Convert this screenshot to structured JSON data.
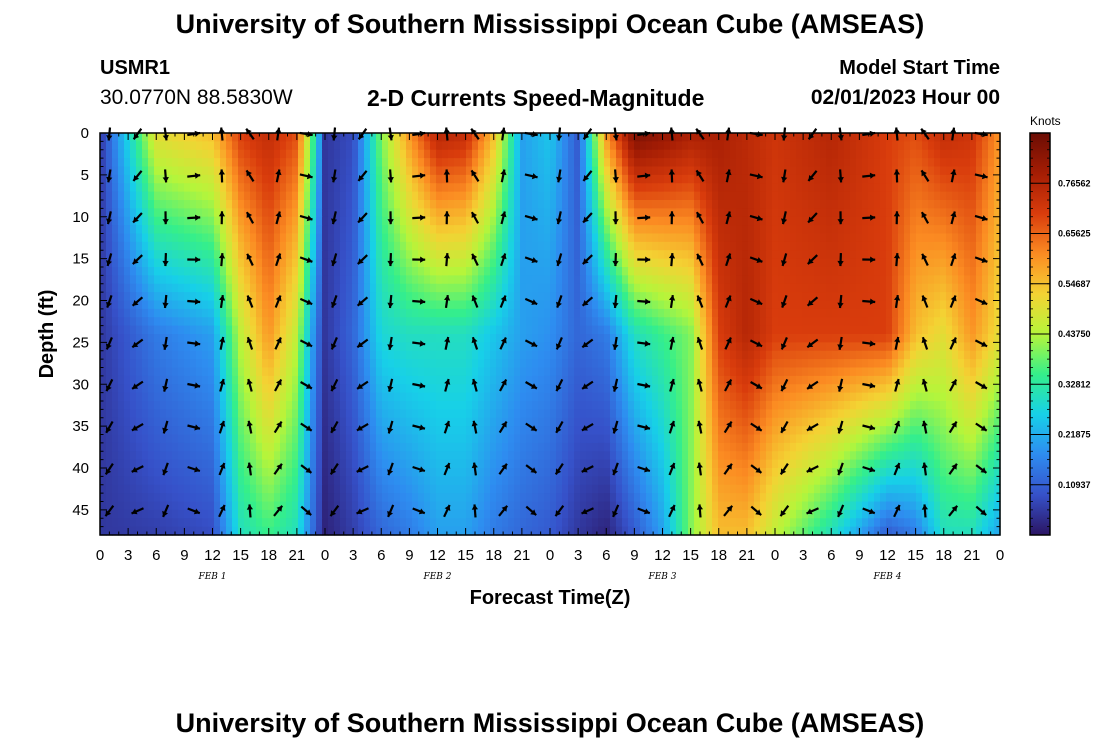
{
  "header": {
    "title_top": "University of Southern Mississippi Ocean Cube (AMSEAS)",
    "title_bottom": "University of Southern Mississippi Ocean Cube (AMSEAS)",
    "station_id": "USMR1",
    "station_coords": "30.0770N  88.5830W",
    "plot_title": "2-D Currents Speed-Magnitude",
    "model_label": "Model Start Time",
    "model_time": "02/01/2023 Hour 00"
  },
  "chart_data": {
    "type": "heatmap",
    "title": "2-D Currents Speed-Magnitude",
    "xlabel": "Forecast Time(Z)",
    "ylabel": "Depth (ft)",
    "x_tick_labels": [
      "0",
      "3",
      "6",
      "9",
      "12",
      "15",
      "18",
      "21",
      "0",
      "3",
      "6",
      "9",
      "12",
      "15",
      "18",
      "21",
      "0",
      "3",
      "6",
      "9",
      "12",
      "15",
      "18",
      "21",
      "0",
      "3",
      "6",
      "9",
      "12",
      "15",
      "18",
      "21",
      "0"
    ],
    "x_range_hours": [
      0,
      96
    ],
    "day_labels": [
      {
        "text": "FEB 1",
        "hour": 12
      },
      {
        "text": "FEB 2",
        "hour": 36
      },
      {
        "text": "FEB 3",
        "hour": 60
      },
      {
        "text": "FEB 4",
        "hour": 84
      }
    ],
    "y_ticks": [
      0,
      5,
      10,
      15,
      20,
      25,
      30,
      35,
      40,
      45
    ],
    "y_range_ft": [
      0,
      48
    ],
    "y_inverted": true,
    "colorbar": {
      "label": "Knots",
      "range": [
        0,
        0.875
      ],
      "tick_labels": [
        "0.76562",
        "0.65625",
        "0.54687",
        "0.43750",
        "0.32812",
        "0.21875",
        "0.10937"
      ],
      "tick_values": [
        0.76562,
        0.65625,
        0.54687,
        0.4375,
        0.32812,
        0.21875,
        0.10937
      ],
      "colors": [
        "#2b1563",
        "#3651c9",
        "#2e8cf0",
        "#17d0e8",
        "#35ef8a",
        "#b6f53a",
        "#f4d233",
        "#fb8b22",
        "#d93c0c",
        "#a51d04",
        "#6b0d04"
      ]
    },
    "vector_depths_ft": [
      0,
      5,
      10,
      15,
      20,
      25,
      30,
      35,
      40,
      45
    ],
    "speed_model": {
      "units": "knots",
      "hours": [
        0,
        6,
        12,
        15,
        18,
        21,
        23,
        24,
        27,
        30,
        33,
        36,
        39,
        42,
        45,
        48,
        51,
        54,
        57,
        60,
        63,
        66,
        69,
        72,
        78,
        84,
        87,
        90,
        93,
        96
      ],
      "surface": [
        0.05,
        0.5,
        0.55,
        0.7,
        0.74,
        0.68,
        0.3,
        0.05,
        0.08,
        0.4,
        0.6,
        0.76,
        0.74,
        0.55,
        0.2,
        0.25,
        0.1,
        0.6,
        0.85,
        0.82,
        0.78,
        0.78,
        0.75,
        0.72,
        0.76,
        0.7,
        0.68,
        0.74,
        0.72,
        0.6
      ],
      "mid": [
        0.05,
        0.15,
        0.2,
        0.45,
        0.6,
        0.45,
        0.15,
        0.05,
        0.12,
        0.28,
        0.3,
        0.3,
        0.3,
        0.25,
        0.2,
        0.18,
        0.12,
        0.15,
        0.3,
        0.35,
        0.4,
        0.7,
        0.76,
        0.7,
        0.7,
        0.7,
        0.55,
        0.5,
        0.6,
        0.5
      ],
      "bottom": [
        0.05,
        0.06,
        0.08,
        0.3,
        0.35,
        0.3,
        0.1,
        0.02,
        0.06,
        0.12,
        0.15,
        0.2,
        0.2,
        0.15,
        0.12,
        0.1,
        0.05,
        0.02,
        0.1,
        0.2,
        0.4,
        0.55,
        0.55,
        0.45,
        0.3,
        0.1,
        0.15,
        0.3,
        0.3,
        0.2
      ]
    }
  }
}
